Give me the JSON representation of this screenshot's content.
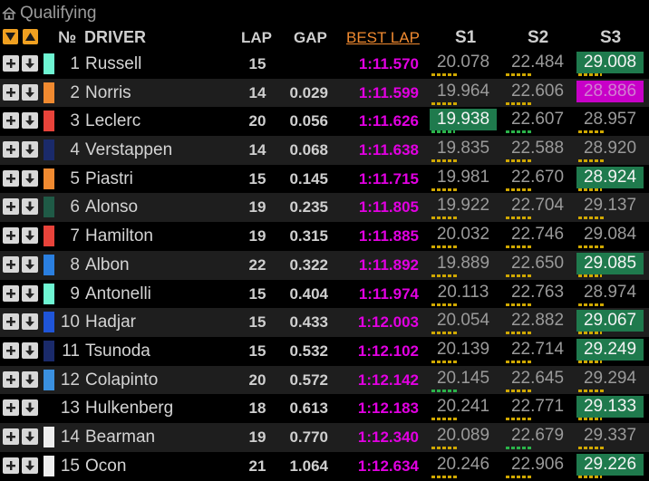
{
  "title": "Qualifying",
  "header": {
    "no": "№",
    "driver": "DRIVER",
    "lap": "LAP",
    "gap": "GAP",
    "best": "BEST LAP",
    "s1": "S1",
    "s2": "S2",
    "s3": "S3"
  },
  "colors": {
    "accent_orange": "#f0a020",
    "best_lap": "#e100e1",
    "sector_green": "#1f7a4d",
    "sector_purple": "#c800c8",
    "microsector_yellow": "#d0a800"
  },
  "rows": [
    {
      "pos": "1",
      "driver": "Russell",
      "lap": "15",
      "gap": "",
      "best": "1:11.570",
      "team_color": "#6ef5d2",
      "s1": "20.078",
      "s1_state": "normal",
      "s2": "22.484",
      "s2_state": "normal",
      "s3": "29.008",
      "s3_state": "green"
    },
    {
      "pos": "2",
      "driver": "Norris",
      "lap": "14",
      "gap": "0.029",
      "best": "1:11.599",
      "team_color": "#f08a30",
      "s1": "19.964",
      "s1_state": "normal",
      "s2": "22.606",
      "s2_state": "normal",
      "s3": "28.886",
      "s3_state": "purple"
    },
    {
      "pos": "3",
      "driver": "Leclerc",
      "lap": "20",
      "gap": "0.056",
      "best": "1:11.626",
      "team_color": "#e8433a",
      "s1": "19.938",
      "s1_state": "green",
      "s2": "22.607",
      "s2_state": "normal",
      "s3": "28.957",
      "s3_state": "normal"
    },
    {
      "pos": "4",
      "driver": "Verstappen",
      "lap": "14",
      "gap": "0.068",
      "best": "1:11.638",
      "team_color": "#1a2a6a",
      "s1": "19.835",
      "s1_state": "normal",
      "s2": "22.588",
      "s2_state": "normal",
      "s3": "28.920",
      "s3_state": "normal"
    },
    {
      "pos": "5",
      "driver": "Piastri",
      "lap": "15",
      "gap": "0.145",
      "best": "1:11.715",
      "team_color": "#f08a30",
      "s1": "19.981",
      "s1_state": "normal",
      "s2": "22.670",
      "s2_state": "normal",
      "s3": "28.924",
      "s3_state": "green"
    },
    {
      "pos": "6",
      "driver": "Alonso",
      "lap": "19",
      "gap": "0.235",
      "best": "1:11.805",
      "team_color": "#1f5a46",
      "s1": "19.922",
      "s1_state": "normal",
      "s2": "22.704",
      "s2_state": "normal",
      "s3": "29.137",
      "s3_state": "normal"
    },
    {
      "pos": "7",
      "driver": "Hamilton",
      "lap": "19",
      "gap": "0.315",
      "best": "1:11.885",
      "team_color": "#e8433a",
      "s1": "20.032",
      "s1_state": "normal",
      "s2": "22.746",
      "s2_state": "normal",
      "s3": "29.084",
      "s3_state": "normal"
    },
    {
      "pos": "8",
      "driver": "Albon",
      "lap": "22",
      "gap": "0.322",
      "best": "1:11.892",
      "team_color": "#2a7fe0",
      "s1": "19.889",
      "s1_state": "normal",
      "s2": "22.650",
      "s2_state": "normal",
      "s3": "29.085",
      "s3_state": "green"
    },
    {
      "pos": "9",
      "driver": "Antonelli",
      "lap": "15",
      "gap": "0.404",
      "best": "1:11.974",
      "team_color": "#6ef5d2",
      "s1": "20.113",
      "s1_state": "normal",
      "s2": "22.763",
      "s2_state": "normal",
      "s3": "28.974",
      "s3_state": "normal"
    },
    {
      "pos": "10",
      "driver": "Hadjar",
      "lap": "15",
      "gap": "0.433",
      "best": "1:12.003",
      "team_color": "#1f55d8",
      "s1": "20.054",
      "s1_state": "normal",
      "s2": "22.882",
      "s2_state": "normal",
      "s3": "29.067",
      "s3_state": "green"
    },
    {
      "pos": "11",
      "driver": "Tsunoda",
      "lap": "15",
      "gap": "0.532",
      "best": "1:12.102",
      "team_color": "#1a2a6a",
      "s1": "20.139",
      "s1_state": "normal",
      "s2": "22.714",
      "s2_state": "normal",
      "s3": "29.249",
      "s3_state": "green"
    },
    {
      "pos": "12",
      "driver": "Colapinto",
      "lap": "20",
      "gap": "0.572",
      "best": "1:12.142",
      "team_color": "#3a90e0",
      "s1": "20.145",
      "s1_state": "normal",
      "s2": "22.645",
      "s2_state": "normal",
      "s3": "29.294",
      "s3_state": "normal"
    },
    {
      "pos": "13",
      "driver": "Hulkenberg",
      "lap": "18",
      "gap": "0.613",
      "best": "1:12.183",
      "team_color": "#000000",
      "s1": "20.241",
      "s1_state": "normal",
      "s2": "22.771",
      "s2_state": "normal",
      "s3": "29.133",
      "s3_state": "green"
    },
    {
      "pos": "14",
      "driver": "Bearman",
      "lap": "19",
      "gap": "0.770",
      "best": "1:12.340",
      "team_color": "#eeeeee",
      "s1": "20.089",
      "s1_state": "normal",
      "s2": "22.679",
      "s2_state": "normal",
      "s3": "29.337",
      "s3_state": "normal"
    },
    {
      "pos": "15",
      "driver": "Ocon",
      "lap": "21",
      "gap": "1.064",
      "best": "1:12.634",
      "team_color": "#eeeeee",
      "s1": "20.246",
      "s1_state": "normal",
      "s2": "22.906",
      "s2_state": "normal",
      "s3": "29.226",
      "s3_state": "green"
    }
  ]
}
